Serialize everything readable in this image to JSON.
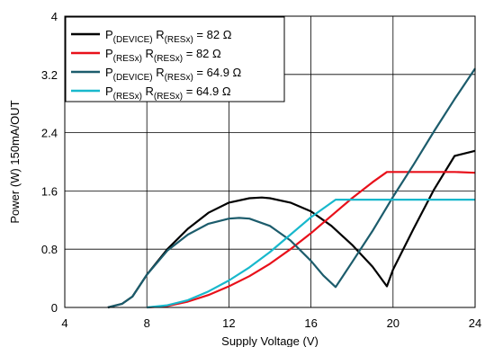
{
  "chart_data": {
    "type": "line",
    "title": "",
    "xlabel": "Supply Voltage (V)",
    "ylabel": "Power (W) 150mA/OUT",
    "xlim": [
      4,
      24
    ],
    "ylim": [
      0,
      4
    ],
    "xticks": [
      4,
      8,
      12,
      16,
      20,
      24
    ],
    "yticks": [
      0,
      0.8,
      1.6,
      2.4,
      3.2,
      4
    ],
    "xtick_labels": [
      "4",
      "8",
      "12",
      "16",
      "20",
      "24"
    ],
    "ytick_labels": [
      "0",
      "0.8",
      "1.6",
      "2.4",
      "3.2",
      "4"
    ],
    "grid": true,
    "legend_position": "top-left",
    "series": [
      {
        "name_main": "P",
        "name_sub": "(DEVICE)",
        "name_mid": " R",
        "name_sub2": "(RESx)",
        "name_tail": " = 82 Ω",
        "color": "#000000",
        "x": [
          6.1,
          6.8,
          7.3,
          8,
          9,
          10,
          11,
          12,
          13,
          13.6,
          14,
          15,
          16,
          17,
          18,
          19,
          19.7,
          20,
          21,
          22,
          23,
          24
        ],
        "y": [
          0,
          0.05,
          0.15,
          0.45,
          0.8,
          1.08,
          1.3,
          1.44,
          1.5,
          1.51,
          1.5,
          1.44,
          1.32,
          1.12,
          0.86,
          0.56,
          0.29,
          0.52,
          1.08,
          1.62,
          2.08,
          2.15
        ]
      },
      {
        "name_main": "P",
        "name_sub": "(RESx)",
        "name_mid": " R",
        "name_sub2": "(RESx)",
        "name_tail": " = 82 Ω",
        "color": "#e8101a",
        "x": [
          8,
          9,
          10,
          11,
          12,
          13,
          14,
          15,
          16,
          17,
          18,
          19,
          19.7,
          20,
          21,
          22,
          23,
          24
        ],
        "y": [
          0,
          0.02,
          0.08,
          0.17,
          0.29,
          0.43,
          0.6,
          0.8,
          1.02,
          1.26,
          1.5,
          1.72,
          1.86,
          1.86,
          1.86,
          1.86,
          1.86,
          1.85
        ]
      },
      {
        "name_main": "P",
        "name_sub": "(DEVICE)",
        "name_mid": " R",
        "name_sub2": "(RESx)",
        "name_tail": " = 64.9 Ω",
        "color": "#1c5c6c",
        "x": [
          6.1,
          6.8,
          7.3,
          8,
          9,
          10,
          11,
          12,
          12.5,
          13,
          14,
          15,
          16,
          16.6,
          17.2,
          18,
          19,
          20,
          21,
          22,
          23,
          24
        ],
        "y": [
          0,
          0.05,
          0.15,
          0.45,
          0.78,
          1.0,
          1.15,
          1.22,
          1.23,
          1.22,
          1.12,
          0.92,
          0.64,
          0.44,
          0.28,
          0.62,
          1.05,
          1.52,
          1.96,
          2.42,
          2.86,
          3.28
        ]
      },
      {
        "name_main": "P",
        "name_sub": "(RESx)",
        "name_mid": " R",
        "name_sub2": "(RESx)",
        "name_tail": " = 64.9 Ω",
        "color": "#18b8cc",
        "x": [
          8,
          9,
          10,
          11,
          12,
          13,
          14,
          15,
          16,
          17.2,
          18,
          20,
          22,
          24
        ],
        "y": [
          0,
          0.03,
          0.1,
          0.22,
          0.37,
          0.55,
          0.76,
          1.0,
          1.24,
          1.48,
          1.48,
          1.48,
          1.48,
          1.48
        ]
      }
    ]
  }
}
